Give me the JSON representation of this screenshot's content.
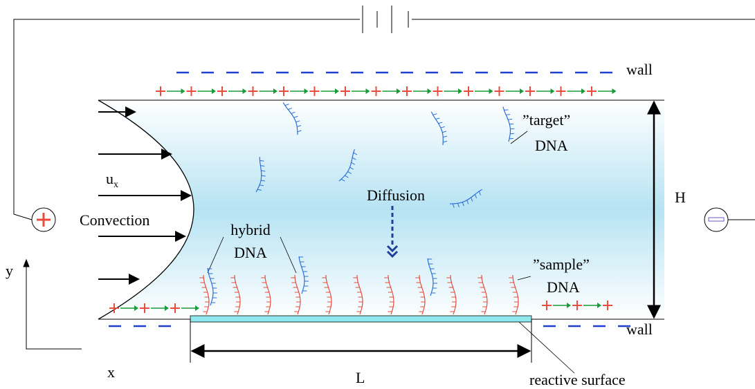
{
  "labels": {
    "wall_top": "wall",
    "wall_bottom": "wall",
    "target": [
      "”target”",
      "DNA"
    ],
    "diffusion": "Diffusion",
    "height": "H",
    "velocity": {
      "base": "u",
      "sub": "x"
    },
    "convection": "Convection",
    "hybrid": [
      "hybrid",
      "DNA"
    ],
    "sample": [
      "”sample”",
      "DNA"
    ],
    "axis_y": "y",
    "axis_x": "x",
    "length": "L",
    "surface": "reactive surface"
  }
}
